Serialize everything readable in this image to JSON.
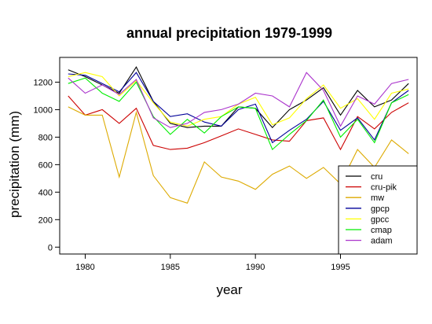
{
  "chart_data": {
    "type": "line",
    "title": "annual precipitation 1979-1999",
    "xlabel": "year",
    "ylabel": "precipitation (mm)",
    "xlim": [
      1978.5,
      1999.5
    ],
    "ylim": [
      -50,
      1380
    ],
    "xticks": [
      1980,
      1985,
      1990,
      1995
    ],
    "xtick_labels": [
      "1980",
      "1985",
      "1990",
      "1995"
    ],
    "yticks": [
      0,
      200,
      400,
      600,
      800,
      1000,
      1200
    ],
    "ytick_labels": [
      "0",
      "200",
      "400",
      "600",
      "800",
      "1000",
      "1200"
    ],
    "grid": false,
    "legend_position": "bottom-right",
    "x": [
      1979,
      1980,
      1981,
      1982,
      1983,
      1984,
      1985,
      1986,
      1987,
      1988,
      1989,
      1990,
      1991,
      1992,
      1993,
      1994,
      1995,
      1996,
      1997,
      1998,
      1999
    ],
    "series": [
      {
        "name": "cru",
        "color": "#000000",
        "values": [
          1290,
          1240,
          1180,
          1120,
          1310,
          1060,
          900,
          870,
          880,
          880,
          1020,
          1010,
          870,
          1000,
          1070,
          1160,
          960,
          1140,
          1020,
          1070,
          1190
        ]
      },
      {
        "name": "cru-pik",
        "color": "#cc0000",
        "values": [
          1100,
          960,
          1000,
          900,
          1010,
          740,
          710,
          720,
          760,
          810,
          860,
          820,
          780,
          770,
          920,
          940,
          710,
          950,
          860,
          980,
          1050
        ]
      },
      {
        "name": "mw",
        "color": "#ddaa00",
        "values": [
          1020,
          960,
          960,
          510,
          980,
          520,
          360,
          320,
          620,
          510,
          480,
          420,
          530,
          590,
          500,
          580,
          460,
          710,
          580,
          780,
          680
        ]
      },
      {
        "name": "gpcp",
        "color": "#000099",
        "values": [
          1260,
          1250,
          1190,
          1130,
          1270,
          1060,
          950,
          970,
          910,
          880,
          1000,
          1040,
          760,
          850,
          930,
          1060,
          850,
          940,
          780,
          1050,
          1140
        ]
      },
      {
        "name": "gpcc",
        "color": "#ffff00",
        "values": [
          1240,
          1270,
          1240,
          1100,
          1210,
          1050,
          910,
          880,
          930,
          950,
          1040,
          1090,
          890,
          940,
          1080,
          1180,
          1010,
          1080,
          930,
          1120,
          1150
        ]
      },
      {
        "name": "cmap",
        "color": "#00ee00",
        "values": [
          1190,
          1230,
          1120,
          1060,
          1200,
          950,
          820,
          930,
          830,
          950,
          1020,
          1010,
          710,
          820,
          920,
          1070,
          800,
          930,
          760,
          1050,
          1110
        ]
      },
      {
        "name": "adam",
        "color": "#aa33cc",
        "values": [
          1230,
          1120,
          1180,
          1110,
          1220,
          940,
          870,
          900,
          980,
          1000,
          1040,
          1120,
          1100,
          1020,
          1270,
          1140,
          880,
          1100,
          1040,
          1190,
          1220
        ]
      }
    ]
  }
}
